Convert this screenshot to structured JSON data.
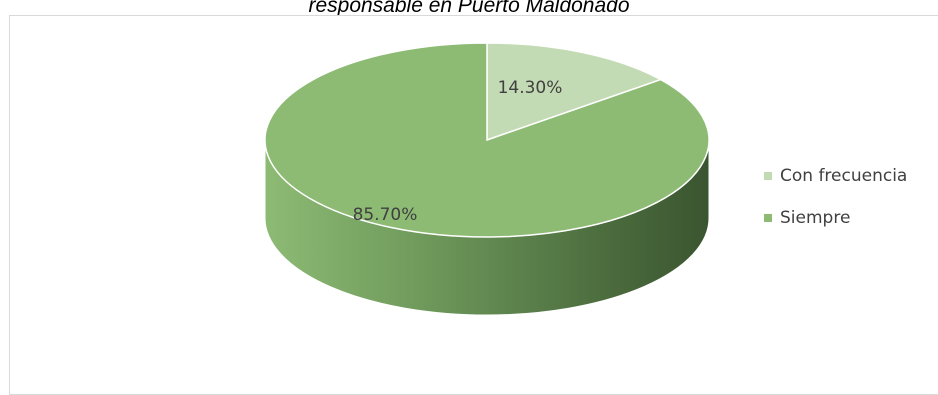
{
  "caption": "responsable en Puerto Maldonado",
  "chart_data": {
    "type": "pie",
    "title": "",
    "categories": [
      "Con frecuencia",
      "Siempre"
    ],
    "values": [
      14.3,
      85.7
    ],
    "data_labels": [
      "14.30%",
      "85.70%"
    ],
    "colors": [
      "#c3dbb4",
      "#8dbb74"
    ],
    "legend_position": "right",
    "style": "3d"
  }
}
